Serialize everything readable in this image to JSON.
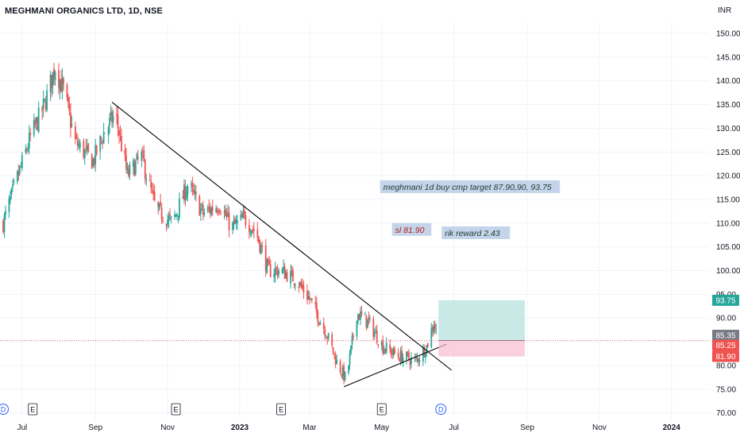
{
  "header": {
    "title": "MEGHMANI ORGANICS LTD, 1D, NSE",
    "currency": "INR"
  },
  "colors": {
    "up": "#26a69a",
    "down": "#ef5350",
    "target_zone": "#b2dfdb",
    "stop_zone": "#f8bbd0",
    "annotation_bg": "#c5d4ea",
    "grid": "#f0f3fa",
    "axis_text": "#131722",
    "event_blue": "#2962ff"
  },
  "chart_data": {
    "type": "candlestick",
    "symbol": "MEGHMANI ORGANICS LTD",
    "interval": "1D",
    "exchange": "NSE",
    "currency": "INR",
    "ylim": [
      69,
      151
    ],
    "grid": true,
    "y_ticks": [
      "150.00",
      "145.00",
      "140.00",
      "135.00",
      "130.00",
      "125.00",
      "120.00",
      "115.00",
      "110.00",
      "105.00",
      "100.00",
      "95.00",
      "90.00",
      "85.00",
      "80.00",
      "75.00",
      "70.00"
    ],
    "x_ticks": [
      {
        "label": "Jul",
        "date": "2022-07-01"
      },
      {
        "label": "Sep",
        "date": "2022-09-01"
      },
      {
        "label": "Nov",
        "date": "2022-11-01"
      },
      {
        "label": "2023",
        "date": "2023-01-01"
      },
      {
        "label": "Mar",
        "date": "2023-03-01"
      },
      {
        "label": "May",
        "date": "2023-05-01"
      },
      {
        "label": "Jul",
        "date": "2023-07-01"
      },
      {
        "label": "Sep",
        "date": "2023-09-01"
      },
      {
        "label": "Nov",
        "date": "2023-11-01"
      },
      {
        "label": "2024",
        "date": "2024-01-01"
      }
    ],
    "x_range": [
      "2022-06-15",
      "2024-01-26"
    ],
    "price_path": [
      {
        "date": "2022-06-15",
        "close": 110
      },
      {
        "date": "2022-06-25",
        "close": 118
      },
      {
        "date": "2022-07-08",
        "close": 128
      },
      {
        "date": "2022-07-20",
        "close": 135
      },
      {
        "date": "2022-07-29",
        "close": 143
      },
      {
        "date": "2022-08-05",
        "close": 138
      },
      {
        "date": "2022-08-15",
        "close": 127
      },
      {
        "date": "2022-08-30",
        "close": 123
      },
      {
        "date": "2022-09-08",
        "close": 129
      },
      {
        "date": "2022-09-18",
        "close": 133
      },
      {
        "date": "2022-09-28",
        "close": 120
      },
      {
        "date": "2022-10-10",
        "close": 124
      },
      {
        "date": "2022-10-22",
        "close": 113
      },
      {
        "date": "2022-11-05",
        "close": 110
      },
      {
        "date": "2022-11-18",
        "close": 118
      },
      {
        "date": "2022-12-01",
        "close": 112
      },
      {
        "date": "2022-12-15",
        "close": 114
      },
      {
        "date": "2022-12-25",
        "close": 109
      },
      {
        "date": "2023-01-05",
        "close": 111
      },
      {
        "date": "2023-01-15",
        "close": 108
      },
      {
        "date": "2023-01-25",
        "close": 100
      },
      {
        "date": "2023-02-05",
        "close": 100
      },
      {
        "date": "2023-02-18",
        "close": 98
      },
      {
        "date": "2023-03-01",
        "close": 94
      },
      {
        "date": "2023-03-15",
        "close": 87
      },
      {
        "date": "2023-03-25",
        "close": 80
      },
      {
        "date": "2023-04-01",
        "close": 77
      },
      {
        "date": "2023-04-10",
        "close": 91
      },
      {
        "date": "2023-04-20",
        "close": 89
      },
      {
        "date": "2023-05-02",
        "close": 84
      },
      {
        "date": "2023-05-15",
        "close": 82
      },
      {
        "date": "2023-05-30",
        "close": 81
      },
      {
        "date": "2023-06-08",
        "close": 84
      },
      {
        "date": "2023-06-14",
        "close": 89
      },
      {
        "date": "2023-06-18",
        "close": 85.35
      }
    ],
    "trendlines": [
      {
        "name": "descending-resistance",
        "from": {
          "date": "2022-09-15",
          "price": 135.5
        },
        "to": {
          "date": "2023-06-29",
          "price": 79
        }
      },
      {
        "name": "ascending-support",
        "from": {
          "date": "2023-03-30",
          "price": 75.5
        },
        "to": {
          "date": "2023-06-25",
          "price": 84.5
        }
      }
    ],
    "position": {
      "start": "2023-06-18",
      "end": "2023-08-30",
      "entry": 85.25,
      "target": 93.75,
      "stop": 81.9
    },
    "price_labels": [
      {
        "value": "93.75",
        "role": "target"
      },
      {
        "value": "85.35",
        "role": "last"
      },
      {
        "value": "85.25",
        "role": "entry"
      },
      {
        "value": "81.90",
        "role": "stop"
      }
    ],
    "annotations": [
      {
        "text": "meghmani 1d buy cmp target 87.90,90, 93.75",
        "date": "2023-05-01",
        "price": 117.5
      },
      {
        "text": "sl 81.90",
        "date": "2023-05-11",
        "price": 108.5
      },
      {
        "text": "rik reward 2.43",
        "date": "2023-06-22",
        "price": 107.8
      }
    ],
    "events": [
      {
        "type": "D",
        "date": "2022-06-15"
      },
      {
        "type": "E",
        "date": "2022-07-10"
      },
      {
        "type": "E",
        "date": "2022-11-08"
      },
      {
        "type": "E",
        "date": "2023-02-05"
      },
      {
        "type": "E",
        "date": "2023-05-01"
      },
      {
        "type": "D",
        "date": "2023-06-20"
      }
    ]
  }
}
